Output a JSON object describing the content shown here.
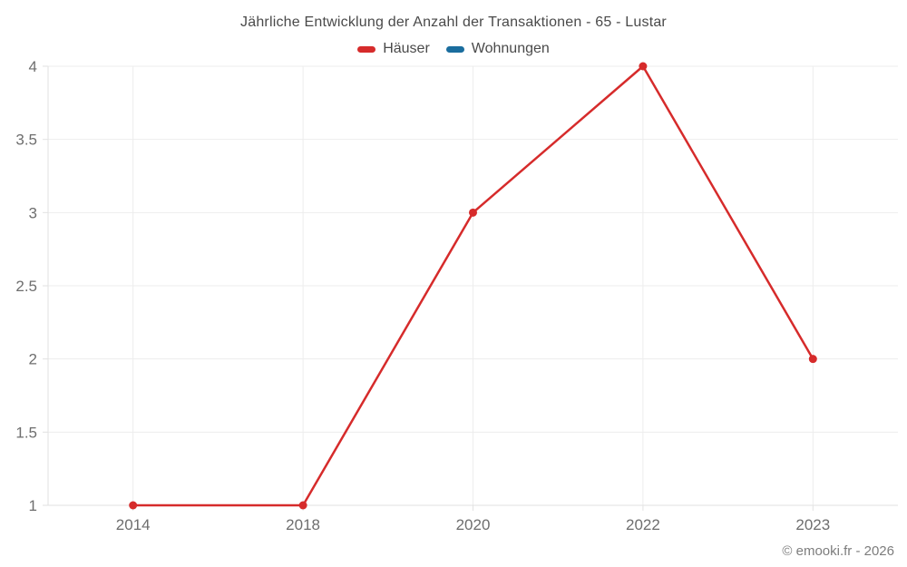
{
  "header": {
    "title": "Jährliche Entwicklung der Anzahl der Transaktionen - 65 - Lustar"
  },
  "legend": {
    "items": [
      {
        "label": "Häuser",
        "color": "#d62b2b"
      },
      {
        "label": "Wohnungen",
        "color": "#1a6d9e"
      }
    ]
  },
  "footer": {
    "copyright": "© emooki.fr - 2026"
  },
  "colors": {
    "series_red": "#d62b2b",
    "series_blue": "#1a6d9e",
    "gridline": "#ededed",
    "axis_line": "#e2e2e2",
    "axis_label": "#6e6e6e",
    "title_text": "#4a4a4a"
  },
  "chart_data": {
    "type": "line",
    "title": "Jährliche Entwicklung der Anzahl der Transaktionen - 65 - Lustar",
    "categories": [
      "2014",
      "2018",
      "2020",
      "2022",
      "2023"
    ],
    "series": [
      {
        "name": "Häuser",
        "color": "#d62b2b",
        "values": [
          1,
          1,
          3,
          4,
          2
        ]
      },
      {
        "name": "Wohnungen",
        "color": "#1a6d9e",
        "values": []
      }
    ],
    "xlabel": "",
    "ylabel": "",
    "ylim": [
      1,
      4
    ],
    "yticks": [
      1,
      1.5,
      2,
      2.5,
      3,
      3.5,
      4
    ],
    "grid": true,
    "legend_position": "top"
  }
}
